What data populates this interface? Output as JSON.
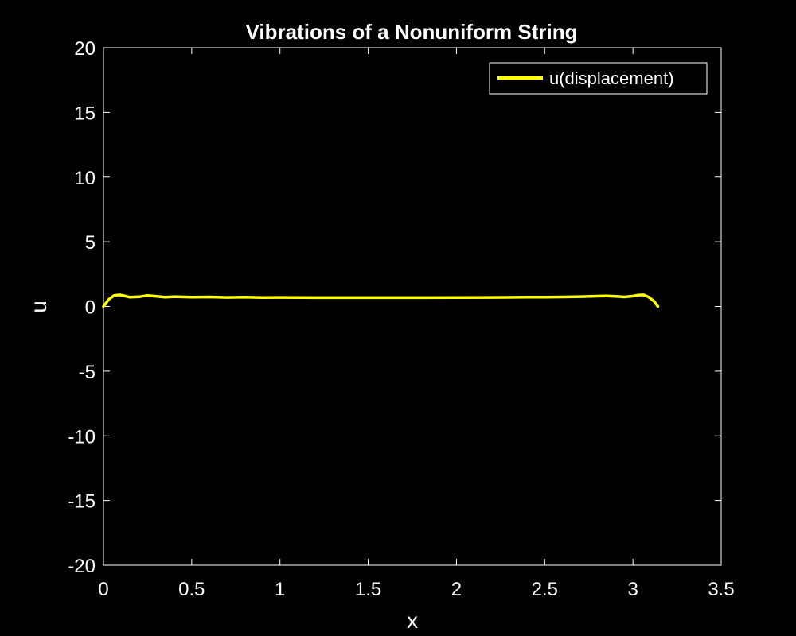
{
  "chart_data": {
    "type": "line",
    "title": "Vibrations of a Nonuniform String",
    "xlabel": "x",
    "ylabel": "u",
    "xlim": [
      0,
      3.5
    ],
    "ylim": [
      -20,
      20
    ],
    "xticks": [
      "0",
      "0.5",
      "1",
      "1.5",
      "2",
      "2.5",
      "3",
      "3.5"
    ],
    "yticks": [
      "-20",
      "-15",
      "-10",
      "-5",
      "0",
      "5",
      "10",
      "15",
      "20"
    ],
    "grid": false,
    "legend_position": "top-right",
    "series": [
      {
        "name": "u(displacement)",
        "color": "#ffff00",
        "x": [
          0,
          0.03,
          0.06,
          0.09,
          0.12,
          0.15,
          0.2,
          0.25,
          0.3,
          0.35,
          0.4,
          0.5,
          0.6,
          0.7,
          0.8,
          0.9,
          1.0,
          1.2,
          1.4,
          1.6,
          1.8,
          2.0,
          2.2,
          2.4,
          2.5,
          2.6,
          2.7,
          2.8,
          2.85,
          2.9,
          2.95,
          3.0,
          3.03,
          3.06,
          3.09,
          3.12,
          3.1416
        ],
        "y": [
          0,
          0.55,
          0.85,
          0.9,
          0.82,
          0.72,
          0.75,
          0.85,
          0.78,
          0.72,
          0.76,
          0.72,
          0.74,
          0.7,
          0.72,
          0.69,
          0.7,
          0.68,
          0.68,
          0.68,
          0.68,
          0.69,
          0.7,
          0.72,
          0.72,
          0.74,
          0.76,
          0.8,
          0.82,
          0.78,
          0.74,
          0.8,
          0.88,
          0.9,
          0.72,
          0.4,
          0.0
        ]
      }
    ]
  }
}
